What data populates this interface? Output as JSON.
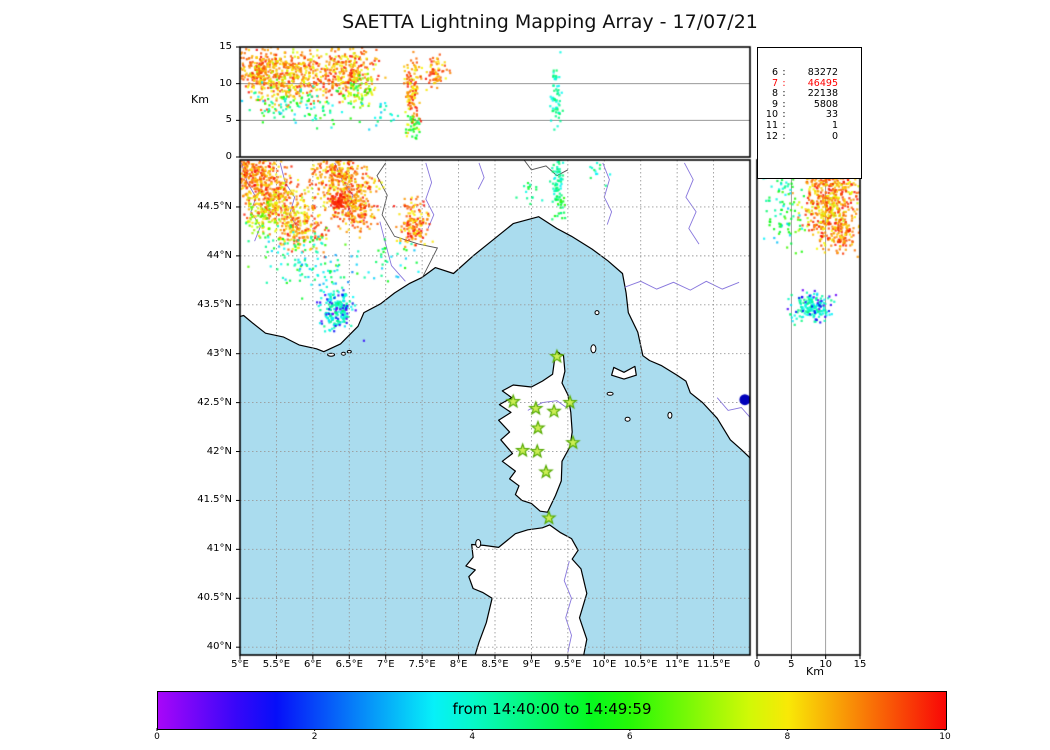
{
  "title": "SAETTA Lightning Mapping Array - 17/07/21",
  "colors": {
    "sea": "#aadcee",
    "land": "#ffffff",
    "coast": "#000000",
    "river": "#8877dd",
    "grid": "#9a9a9a",
    "border_line": "#555555",
    "station_fill": "#ccee55",
    "station_stroke": "#55aa00",
    "highlight": "#ff0000",
    "blue_dot": "#0000bb"
  },
  "stats_box": {
    "rows": [
      [
        "6",
        "83272"
      ],
      [
        "7",
        "46495"
      ],
      [
        "8",
        "22138"
      ],
      [
        "9",
        "5808"
      ],
      [
        "10",
        "33"
      ],
      [
        "11",
        "1"
      ],
      [
        "12",
        "0"
      ]
    ],
    "highlight_row": 1
  },
  "top_panel": {
    "km_label": "Km",
    "yticks": [
      0,
      5,
      10,
      15
    ],
    "grid_alts": [
      5,
      10
    ]
  },
  "right_panel": {
    "km_label": "Km",
    "xticks": [
      0,
      5,
      10,
      15
    ],
    "grid_alts": [
      5,
      10
    ]
  },
  "map_axes": {
    "lon_range": [
      5,
      12
    ],
    "lat_range": [
      39.92,
      44.98
    ],
    "lon_ticks": [
      5,
      5.5,
      6,
      6.5,
      7,
      7.5,
      8,
      8.5,
      9,
      9.5,
      10,
      10.5,
      11,
      11.5
    ],
    "lon_labels": [
      "5°E",
      "5.5°E",
      "6°E",
      "6.5°E",
      "7°E",
      "7.5°E",
      "8°E",
      "8.5°E",
      "9°E",
      "9.5°E",
      "10°E",
      "10.5°E",
      "11°E",
      "11.5°E"
    ],
    "lat_ticks": [
      44.5,
      44,
      43.5,
      43,
      42.5,
      42,
      41.5,
      41,
      40.5,
      40
    ],
    "lat_labels": [
      "44.5°N",
      "44°N",
      "43.5°N",
      "43°N",
      "42.5°N",
      "42°N",
      "41.5°N",
      "41°N",
      "40.5°N",
      "40°N"
    ]
  },
  "colorbar": {
    "label": "from 14:40:00 to 14:49:59",
    "ticks": [
      "0",
      "2",
      "4",
      "6",
      "8",
      "10"
    ],
    "colormap": "rainbow"
  },
  "stations": [
    [
      9.35,
      42.97
    ],
    [
      8.75,
      42.51
    ],
    [
      9.06,
      42.44
    ],
    [
      9.31,
      42.41
    ],
    [
      9.53,
      42.5
    ],
    [
      9.09,
      42.24
    ],
    [
      9.57,
      42.09
    ],
    [
      8.88,
      42.01
    ],
    [
      9.08,
      42.0
    ],
    [
      9.2,
      41.79
    ],
    [
      9.24,
      41.32
    ]
  ],
  "blue_dot": {
    "lon": 11.93,
    "lat": 42.53
  },
  "geo": {
    "land_names": [
      "mainland",
      "corsica",
      "sardinia",
      "elba"
    ],
    "land": [
      [
        [
          4.85,
          43.35
        ],
        [
          5.05,
          43.39
        ],
        [
          5.18,
          43.31
        ],
        [
          5.35,
          43.21
        ],
        [
          5.6,
          43.17
        ],
        [
          5.81,
          43.09
        ],
        [
          6.05,
          43.05
        ],
        [
          6.15,
          43.02
        ],
        [
          6.38,
          43.1
        ],
        [
          6.62,
          43.28
        ],
        [
          6.7,
          43.42
        ],
        [
          6.93,
          43.51
        ],
        [
          7.12,
          43.62
        ],
        [
          7.33,
          43.72
        ],
        [
          7.5,
          43.78
        ],
        [
          7.68,
          43.88
        ],
        [
          7.93,
          43.82
        ],
        [
          8.2,
          44.0
        ],
        [
          8.45,
          44.15
        ],
        [
          8.75,
          44.33
        ],
        [
          9.1,
          44.4
        ],
        [
          9.35,
          44.28
        ],
        [
          9.55,
          44.2
        ],
        [
          9.83,
          44.07
        ],
        [
          10.05,
          43.95
        ],
        [
          10.25,
          43.82
        ],
        [
          10.3,
          43.62
        ],
        [
          10.33,
          43.42
        ],
        [
          10.46,
          43.22
        ],
        [
          10.53,
          42.98
        ],
        [
          10.62,
          42.93
        ],
        [
          10.78,
          42.88
        ],
        [
          11.0,
          42.78
        ],
        [
          11.12,
          42.72
        ],
        [
          11.18,
          42.6
        ],
        [
          11.35,
          42.5
        ],
        [
          11.55,
          42.34
        ],
        [
          11.73,
          42.12
        ],
        [
          11.88,
          42.02
        ],
        [
          12.05,
          41.9
        ],
        [
          12.4,
          41.65
        ],
        [
          12.4,
          45.2
        ],
        [
          4.85,
          45.2
        ]
      ],
      [
        [
          9.35,
          43.02
        ],
        [
          9.44,
          42.98
        ],
        [
          9.46,
          42.82
        ],
        [
          9.42,
          42.7
        ],
        [
          9.5,
          42.58
        ],
        [
          9.54,
          42.4
        ],
        [
          9.56,
          42.2
        ],
        [
          9.53,
          42.05
        ],
        [
          9.42,
          41.9
        ],
        [
          9.41,
          41.7
        ],
        [
          9.33,
          41.55
        ],
        [
          9.22,
          41.38
        ],
        [
          9.12,
          41.39
        ],
        [
          9.0,
          41.47
        ],
        [
          8.87,
          41.5
        ],
        [
          8.78,
          41.56
        ],
        [
          8.83,
          41.65
        ],
        [
          8.7,
          41.72
        ],
        [
          8.78,
          41.8
        ],
        [
          8.6,
          41.9
        ],
        [
          8.74,
          41.98
        ],
        [
          8.58,
          42.12
        ],
        [
          8.7,
          42.2
        ],
        [
          8.55,
          42.32
        ],
        [
          8.72,
          42.4
        ],
        [
          8.56,
          42.48
        ],
        [
          8.73,
          42.55
        ],
        [
          8.6,
          42.62
        ],
        [
          8.75,
          42.68
        ],
        [
          9.0,
          42.66
        ],
        [
          9.15,
          42.72
        ],
        [
          9.29,
          42.79
        ],
        [
          9.32,
          42.95
        ]
      ],
      [
        [
          8.2,
          39.85
        ],
        [
          8.28,
          40.05
        ],
        [
          8.38,
          40.25
        ],
        [
          8.46,
          40.5
        ],
        [
          8.33,
          40.56
        ],
        [
          8.2,
          40.6
        ],
        [
          8.14,
          40.72
        ],
        [
          8.23,
          40.79
        ],
        [
          8.1,
          40.83
        ],
        [
          8.2,
          40.92
        ],
        [
          8.18,
          41.05
        ],
        [
          8.35,
          41.04
        ],
        [
          8.55,
          41.02
        ],
        [
          8.78,
          41.16
        ],
        [
          8.95,
          41.2
        ],
        [
          9.15,
          41.22
        ],
        [
          9.25,
          41.25
        ],
        [
          9.4,
          41.17
        ],
        [
          9.55,
          41.11
        ],
        [
          9.64,
          40.99
        ],
        [
          9.56,
          40.9
        ],
        [
          9.68,
          40.8
        ],
        [
          9.76,
          40.55
        ],
        [
          9.66,
          40.3
        ],
        [
          9.76,
          40.08
        ],
        [
          9.7,
          39.85
        ]
      ],
      [
        [
          10.1,
          42.78
        ],
        [
          10.13,
          42.86
        ],
        [
          10.27,
          42.81
        ],
        [
          10.42,
          42.87
        ],
        [
          10.44,
          42.78
        ],
        [
          10.27,
          42.74
        ]
      ]
    ],
    "islands": [
      [
        9.85,
        43.05,
        2.5,
        4
      ],
      [
        9.9,
        43.42,
        2,
        2
      ],
      [
        10.08,
        42.59,
        3,
        1.5
      ],
      [
        10.32,
        42.33,
        2.5,
        2
      ],
      [
        10.9,
        42.37,
        2,
        3
      ],
      [
        6.25,
        42.99,
        3.5,
        1.5
      ],
      [
        6.42,
        43.0,
        2,
        1.5
      ],
      [
        6.5,
        43.02,
        2,
        1.2
      ],
      [
        8.27,
        41.06,
        2.5,
        4
      ]
    ],
    "rivers": [
      [
        [
          5.02,
          44.95
        ],
        [
          5.1,
          44.75
        ],
        [
          5.22,
          44.6
        ],
        [
          5.15,
          44.45
        ],
        [
          5.28,
          44.3
        ],
        [
          5.2,
          44.15
        ]
      ],
      [
        [
          5.55,
          44.95
        ],
        [
          5.62,
          44.75
        ],
        [
          5.75,
          44.6
        ],
        [
          5.68,
          44.42
        ],
        [
          5.8,
          44.28
        ]
      ],
      [
        [
          6.3,
          44.95
        ],
        [
          6.4,
          44.78
        ],
        [
          6.55,
          44.62
        ],
        [
          6.48,
          44.45
        ]
      ],
      [
        [
          6.92,
          44.35
        ],
        [
          7.0,
          44.12
        ],
        [
          7.08,
          43.9
        ],
        [
          7.27,
          43.74
        ]
      ],
      [
        [
          7.55,
          44.95
        ],
        [
          7.63,
          44.75
        ],
        [
          7.55,
          44.58
        ],
        [
          7.66,
          44.42
        ],
        [
          7.58,
          44.28
        ]
      ],
      [
        [
          8.28,
          44.95
        ],
        [
          8.35,
          44.8
        ],
        [
          8.27,
          44.68
        ]
      ],
      [
        [
          9.98,
          44.95
        ],
        [
          10.07,
          44.78
        ],
        [
          10.0,
          44.6
        ],
        [
          10.1,
          44.45
        ],
        [
          10.04,
          44.32
        ]
      ],
      [
        [
          11.1,
          44.95
        ],
        [
          11.22,
          44.78
        ],
        [
          11.12,
          44.6
        ],
        [
          11.26,
          44.45
        ],
        [
          11.16,
          44.28
        ],
        [
          11.3,
          44.12
        ]
      ],
      [
        [
          10.28,
          43.68
        ],
        [
          10.5,
          43.74
        ],
        [
          10.72,
          43.66
        ],
        [
          10.95,
          43.73
        ],
        [
          11.18,
          43.65
        ],
        [
          11.4,
          43.74
        ],
        [
          11.62,
          43.66
        ],
        [
          11.85,
          43.73
        ]
      ],
      [
        [
          11.55,
          42.55
        ],
        [
          11.7,
          42.42
        ],
        [
          11.88,
          42.45
        ],
        [
          12.0,
          42.35
        ]
      ],
      [
        [
          8.95,
          42.42
        ],
        [
          9.15,
          42.5
        ],
        [
          9.35,
          42.52
        ],
        [
          9.48,
          42.45
        ]
      ],
      [
        [
          9.52,
          40.88
        ],
        [
          9.45,
          40.68
        ],
        [
          9.55,
          40.5
        ],
        [
          9.47,
          40.3
        ],
        [
          9.55,
          40.12
        ],
        [
          9.5,
          39.95
        ]
      ]
    ],
    "borders": [
      [
        [
          7.51,
          43.79
        ],
        [
          7.62,
          43.95
        ],
        [
          7.71,
          44.08
        ],
        [
          7.45,
          44.12
        ],
        [
          7.12,
          44.2
        ],
        [
          6.95,
          44.42
        ],
        [
          7.02,
          44.62
        ],
        [
          6.88,
          44.82
        ],
        [
          7.0,
          44.95
        ]
      ],
      [
        [
          8.9,
          44.98
        ],
        [
          9.0,
          44.88
        ],
        [
          9.2,
          44.92
        ],
        [
          9.35,
          44.82
        ],
        [
          9.5,
          44.88
        ]
      ]
    ]
  },
  "chart_data": {
    "type": "scatter",
    "title": "SAETTA Lightning Mapping Array - 17/07/21",
    "time_range": [
      "14:40:00",
      "14:49:59"
    ],
    "colormap": "rainbow: violet=start of window, red=end of window",
    "source_counts_by_min_stations": {
      "6": 83272,
      "7": 46495,
      "8": 22138,
      "9": 5808,
      "10": 33,
      "11": 1,
      "12": 0
    },
    "panels": {
      "lon_alt": {
        "xlim": [
          5,
          12
        ],
        "ylim": [
          0,
          15
        ],
        "ylabel": "Km"
      },
      "map": {
        "xlim": [
          5,
          12
        ],
        "ylim": [
          39.92,
          44.98
        ]
      },
      "lat_alt": {
        "xlim": [
          0,
          15
        ],
        "ylim": [
          39.92,
          44.98
        ],
        "xlabel": "Km"
      }
    },
    "cluster_format": [
      "center_x",
      "center_y",
      "sigma_x",
      "sigma_y",
      "n_points",
      "t_min",
      "t_max"
    ],
    "clusters": {
      "map": [
        [
          5.15,
          44.85,
          0.12,
          0.1,
          150,
          0.8,
          1.0
        ],
        [
          5.35,
          44.7,
          0.18,
          0.13,
          230,
          0.78,
          1.0
        ],
        [
          5.55,
          44.5,
          0.18,
          0.13,
          230,
          0.72,
          0.98
        ],
        [
          5.85,
          44.28,
          0.16,
          0.12,
          170,
          0.75,
          1.0
        ],
        [
          5.3,
          44.38,
          0.12,
          0.1,
          80,
          0.6,
          0.85
        ],
        [
          6.3,
          44.9,
          0.14,
          0.08,
          110,
          0.78,
          1.0
        ],
        [
          6.45,
          44.7,
          0.2,
          0.14,
          300,
          0.75,
          1.0
        ],
        [
          6.55,
          44.45,
          0.14,
          0.11,
          150,
          0.8,
          1.0
        ],
        [
          6.35,
          44.55,
          0.05,
          0.05,
          60,
          0.95,
          1.0
        ],
        [
          7.38,
          44.35,
          0.1,
          0.11,
          150,
          0.78,
          1.0
        ],
        [
          5.7,
          44.05,
          0.3,
          0.16,
          80,
          0.3,
          0.65
        ],
        [
          6.1,
          43.85,
          0.22,
          0.13,
          50,
          0.25,
          0.55
        ],
        [
          6.33,
          43.45,
          0.1,
          0.09,
          170,
          0.33,
          0.48
        ],
        [
          6.3,
          43.45,
          0.18,
          0.12,
          40,
          0.04,
          0.18
        ],
        [
          9.35,
          44.78,
          0.04,
          0.13,
          65,
          0.35,
          0.5
        ],
        [
          9.4,
          44.48,
          0.05,
          0.08,
          22,
          0.45,
          0.62
        ],
        [
          8.95,
          44.65,
          0.1,
          0.09,
          15,
          0.35,
          0.55
        ],
        [
          7.0,
          44.0,
          0.22,
          0.12,
          35,
          0.3,
          0.6
        ],
        [
          9.9,
          44.85,
          0.07,
          0.07,
          12,
          0.35,
          0.5
        ]
      ],
      "lon_alt": [
        [
          5.25,
          12.0,
          0.16,
          1.4,
          220,
          0.8,
          1.0
        ],
        [
          5.55,
          10.5,
          0.2,
          1.8,
          230,
          0.72,
          0.98
        ],
        [
          5.9,
          11.5,
          0.14,
          1.5,
          150,
          0.75,
          1.0
        ],
        [
          6.45,
          11.5,
          0.2,
          1.7,
          300,
          0.75,
          1.0
        ],
        [
          6.6,
          9.0,
          0.12,
          1.0,
          70,
          0.5,
          0.8
        ],
        [
          5.6,
          7.5,
          0.35,
          1.2,
          80,
          0.3,
          0.65
        ],
        [
          7.37,
          9.0,
          0.05,
          2.4,
          130,
          0.75,
          1.0
        ],
        [
          7.37,
          4.3,
          0.05,
          0.8,
          30,
          0.45,
          0.65
        ],
        [
          7.7,
          11.5,
          0.07,
          1.1,
          65,
          0.78,
          1.0
        ],
        [
          9.34,
          8.5,
          0.04,
          2.3,
          60,
          0.35,
          0.5
        ],
        [
          7.0,
          6.0,
          0.12,
          0.9,
          16,
          0.3,
          0.48
        ],
        [
          6.0,
          5.5,
          0.4,
          1.0,
          28,
          0.3,
          0.6
        ]
      ],
      "lat_alt": [
        [
          11.5,
          44.7,
          1.8,
          0.15,
          280,
          0.75,
          1.0
        ],
        [
          10.0,
          44.45,
          1.8,
          0.12,
          210,
          0.72,
          1.0
        ],
        [
          12.0,
          44.22,
          1.5,
          0.1,
          150,
          0.78,
          1.0
        ],
        [
          9.0,
          44.85,
          1.5,
          0.09,
          110,
          0.78,
          1.0
        ],
        [
          4.0,
          44.4,
          1.5,
          0.15,
          70,
          0.3,
          0.65
        ],
        [
          8.0,
          43.47,
          1.3,
          0.07,
          150,
          0.33,
          0.48
        ],
        [
          8.5,
          43.5,
          1.8,
          0.1,
          30,
          0.04,
          0.18
        ],
        [
          3.5,
          44.75,
          1.5,
          0.12,
          30,
          0.35,
          0.6
        ]
      ]
    }
  }
}
